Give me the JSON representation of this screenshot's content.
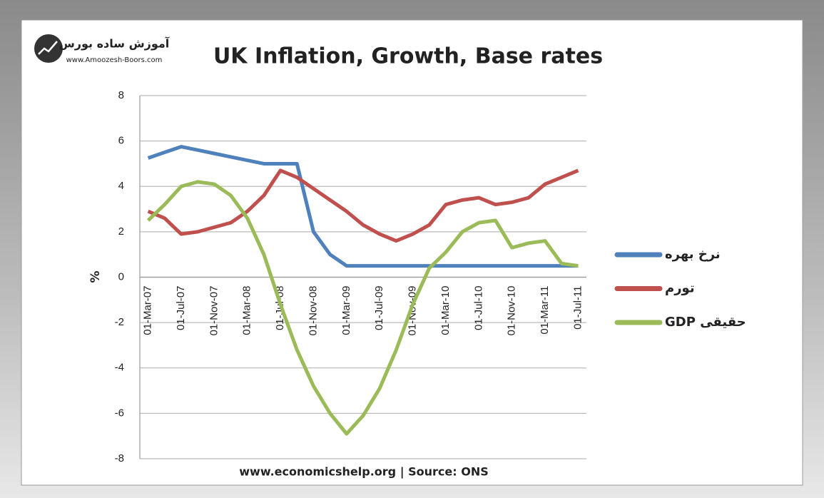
{
  "logo": {
    "name": "آموزش ساده بورس",
    "url": "www.Amoozesh-Boors.com"
  },
  "chart_data": {
    "type": "line",
    "title": "UK Inflation, Growth, Base rates",
    "ylabel": "%",
    "source": "www.economicshelp.org | Source: ONS",
    "categories": [
      "01-Mar-07",
      null,
      "01-Jul-07",
      null,
      "01-Nov-07",
      null,
      "01-Mar-08",
      null,
      "01-Jul-08",
      null,
      "01-Nov-08",
      null,
      "01-Mar-09",
      null,
      "01-Jul-09",
      null,
      "01-Nov-09",
      null,
      "01-Mar-10",
      null,
      "01-Jul-10",
      null,
      "01-Nov-10",
      null,
      "01-Mar-11",
      null,
      "01-Jul-11"
    ],
    "series": [
      {
        "name": "نرخ بهره",
        "color": "#4f81bd",
        "values": [
          5.25,
          5.5,
          5.75,
          5.6,
          5.45,
          5.3,
          5.15,
          5.0,
          5.0,
          5.0,
          2.0,
          1.0,
          0.5,
          0.5,
          0.5,
          0.5,
          0.5,
          0.5,
          0.5,
          0.5,
          0.5,
          0.5,
          0.5,
          0.5,
          0.5,
          0.5,
          0.5
        ]
      },
      {
        "name": "تورم",
        "color": "#c0504d",
        "values": [
          2.9,
          2.6,
          1.9,
          2.0,
          2.2,
          2.4,
          2.9,
          3.6,
          4.7,
          4.4,
          3.9,
          3.4,
          2.9,
          2.3,
          1.9,
          1.6,
          1.9,
          2.3,
          3.2,
          3.4,
          3.5,
          3.2,
          3.3,
          3.5,
          4.1,
          4.4,
          4.7
        ]
      },
      {
        "name": "GDP حقیقی",
        "color": "#9bbb59",
        "values": [
          2.5,
          3.2,
          4.0,
          4.2,
          4.1,
          3.6,
          2.6,
          1.0,
          -1.2,
          -3.2,
          -4.8,
          -6.0,
          -6.9,
          -6.1,
          -4.9,
          -3.2,
          -1.2,
          0.4,
          1.1,
          2.0,
          2.4,
          2.5,
          1.3,
          1.5,
          1.6,
          0.6,
          0.5
        ]
      }
    ],
    "ylim": [
      -8,
      8
    ],
    "yticks": [
      -8,
      -6,
      -4,
      -2,
      0,
      2,
      4,
      6,
      8
    ],
    "grid": true,
    "legend": "right"
  }
}
